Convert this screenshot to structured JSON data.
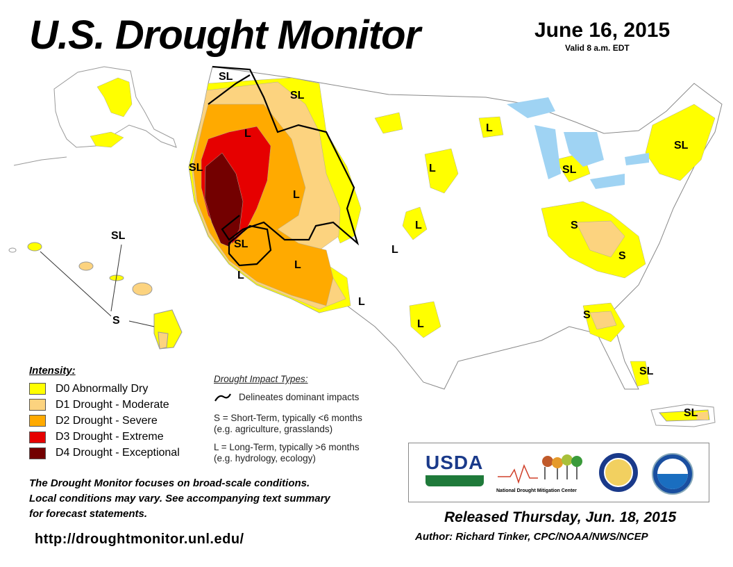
{
  "header": {
    "title": "U.S. Drought Monitor",
    "date": "June 16, 2015",
    "valid": "Valid 8 a.m. EDT"
  },
  "map_labels": [
    "SL",
    "SL",
    "SL",
    "L",
    "L",
    "L",
    "L",
    "L",
    "SL",
    "L",
    "L",
    "L",
    "L",
    "L",
    "SL",
    "S",
    "S",
    "S",
    "SL",
    "SL",
    "SL",
    "SL",
    "S"
  ],
  "legend": {
    "heading": "Intensity:",
    "items": [
      {
        "label": "D0 Abnormally Dry",
        "color": "#ffff00"
      },
      {
        "label": "D1 Drought - Moderate",
        "color": "#fcd37f"
      },
      {
        "label": "D2 Drought - Severe",
        "color": "#ffaa00"
      },
      {
        "label": "D3 Drought - Extreme",
        "color": "#e60000"
      },
      {
        "label": "D4 Drought - Exceptional",
        "color": "#730000"
      }
    ]
  },
  "impact": {
    "heading": "Drought Impact Types:",
    "delineates": "Delineates dominant impacts",
    "short_term": "S = Short-Term, typically <6 months",
    "short_term_eg": "(e.g. agriculture, grasslands)",
    "long_term": "L = Long-Term, typically >6 months",
    "long_term_eg": "(e.g. hydrology, ecology)"
  },
  "note": {
    "line1": "The Drought Monitor focuses on broad-scale conditions.",
    "line2": "Local conditions may vary. See accompanying text summary",
    "line3": "for forecast statements."
  },
  "url": "http://droughtmonitor.unl.edu/",
  "logos": {
    "usda": "USDA",
    "ndmc_prefix": "National",
    "ndmc_name": "Drought Mitigation Center",
    "noaa": "noaa"
  },
  "footer": {
    "released": "Released Thursday, Jun. 18, 2015",
    "author": "Author: Richard Tinker, CPC/NOAA/NWS/NCEP"
  }
}
